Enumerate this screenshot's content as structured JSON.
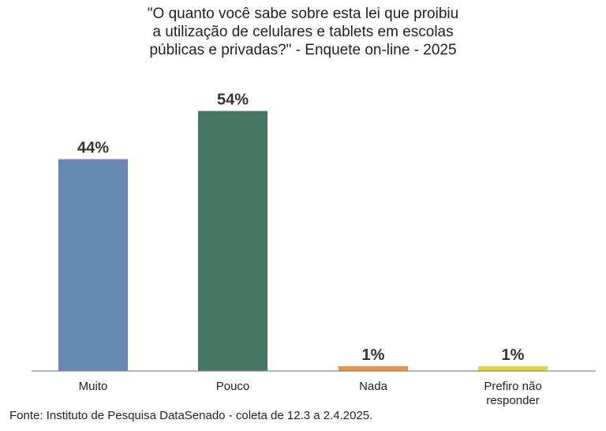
{
  "chart_data": {
    "type": "bar",
    "title_lines": [
      "\"O quanto você sabe sobre esta lei que proibiu",
      "a utilização de celulares e tablets em escolas",
      "públicas e privadas?\" - Enquete on-line - 2025"
    ],
    "categories": [
      "Muito",
      "Pouco",
      "Nada",
      "Prefiro não responder"
    ],
    "category_lines": [
      [
        "Muito"
      ],
      [
        "Pouco"
      ],
      [
        "Nada"
      ],
      [
        "Prefiro não",
        "responder"
      ]
    ],
    "values": [
      44,
      54,
      1,
      1
    ],
    "data_labels": [
      "44%",
      "54%",
      "1%",
      "1%"
    ],
    "colors": [
      "#6689b3",
      "#457663",
      "#f0913f",
      "#e2d53c"
    ],
    "ylim": [
      0,
      100
    ],
    "xlabel": "",
    "ylabel": "",
    "grid": false,
    "legend": "none"
  },
  "source": "Fonte: Instituto de Pesquisa DataSenado - coleta de 12.3 a 2.4.2025."
}
